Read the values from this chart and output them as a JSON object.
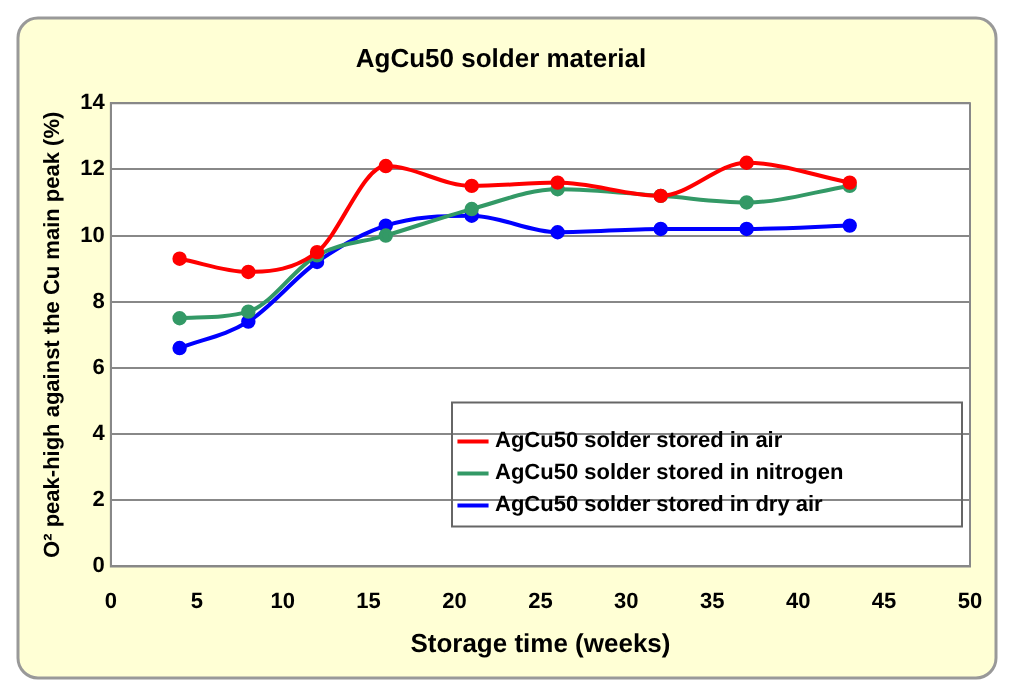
{
  "chart_data": {
    "type": "line",
    "title": "AgCu50 solder material",
    "xlabel": "Storage time (weeks)",
    "ylabel": "O² peak-high against the Cu main peak (%)",
    "xlim": [
      0,
      50
    ],
    "xticks": [
      0,
      5,
      10,
      15,
      20,
      25,
      30,
      35,
      40,
      45,
      50
    ],
    "ylim": [
      0,
      14
    ],
    "yticks": [
      0,
      2,
      4,
      6,
      8,
      10,
      12,
      14
    ],
    "x": [
      4,
      8,
      12,
      16,
      21,
      26,
      32,
      37,
      43
    ],
    "series": [
      {
        "name": "AgCu50 solder stored in air",
        "color": "#ff0000",
        "values": [
          9.3,
          8.9,
          9.5,
          12.1,
          11.5,
          11.6,
          11.2,
          12.2,
          11.6
        ]
      },
      {
        "name": "AgCu50 solder stored in nitrogen",
        "color": "#339966",
        "values": [
          7.5,
          7.7,
          9.4,
          10.0,
          10.8,
          11.4,
          11.2,
          11.0,
          11.5
        ]
      },
      {
        "name": "AgCu50 solder stored in dry air",
        "color": "#0000ff",
        "values": [
          6.6,
          7.4,
          9.2,
          10.3,
          10.6,
          10.1,
          10.2,
          10.2,
          10.3
        ]
      }
    ],
    "grid": "y",
    "legend": "bottom right",
    "marker": "circle",
    "line_style": "solid"
  }
}
